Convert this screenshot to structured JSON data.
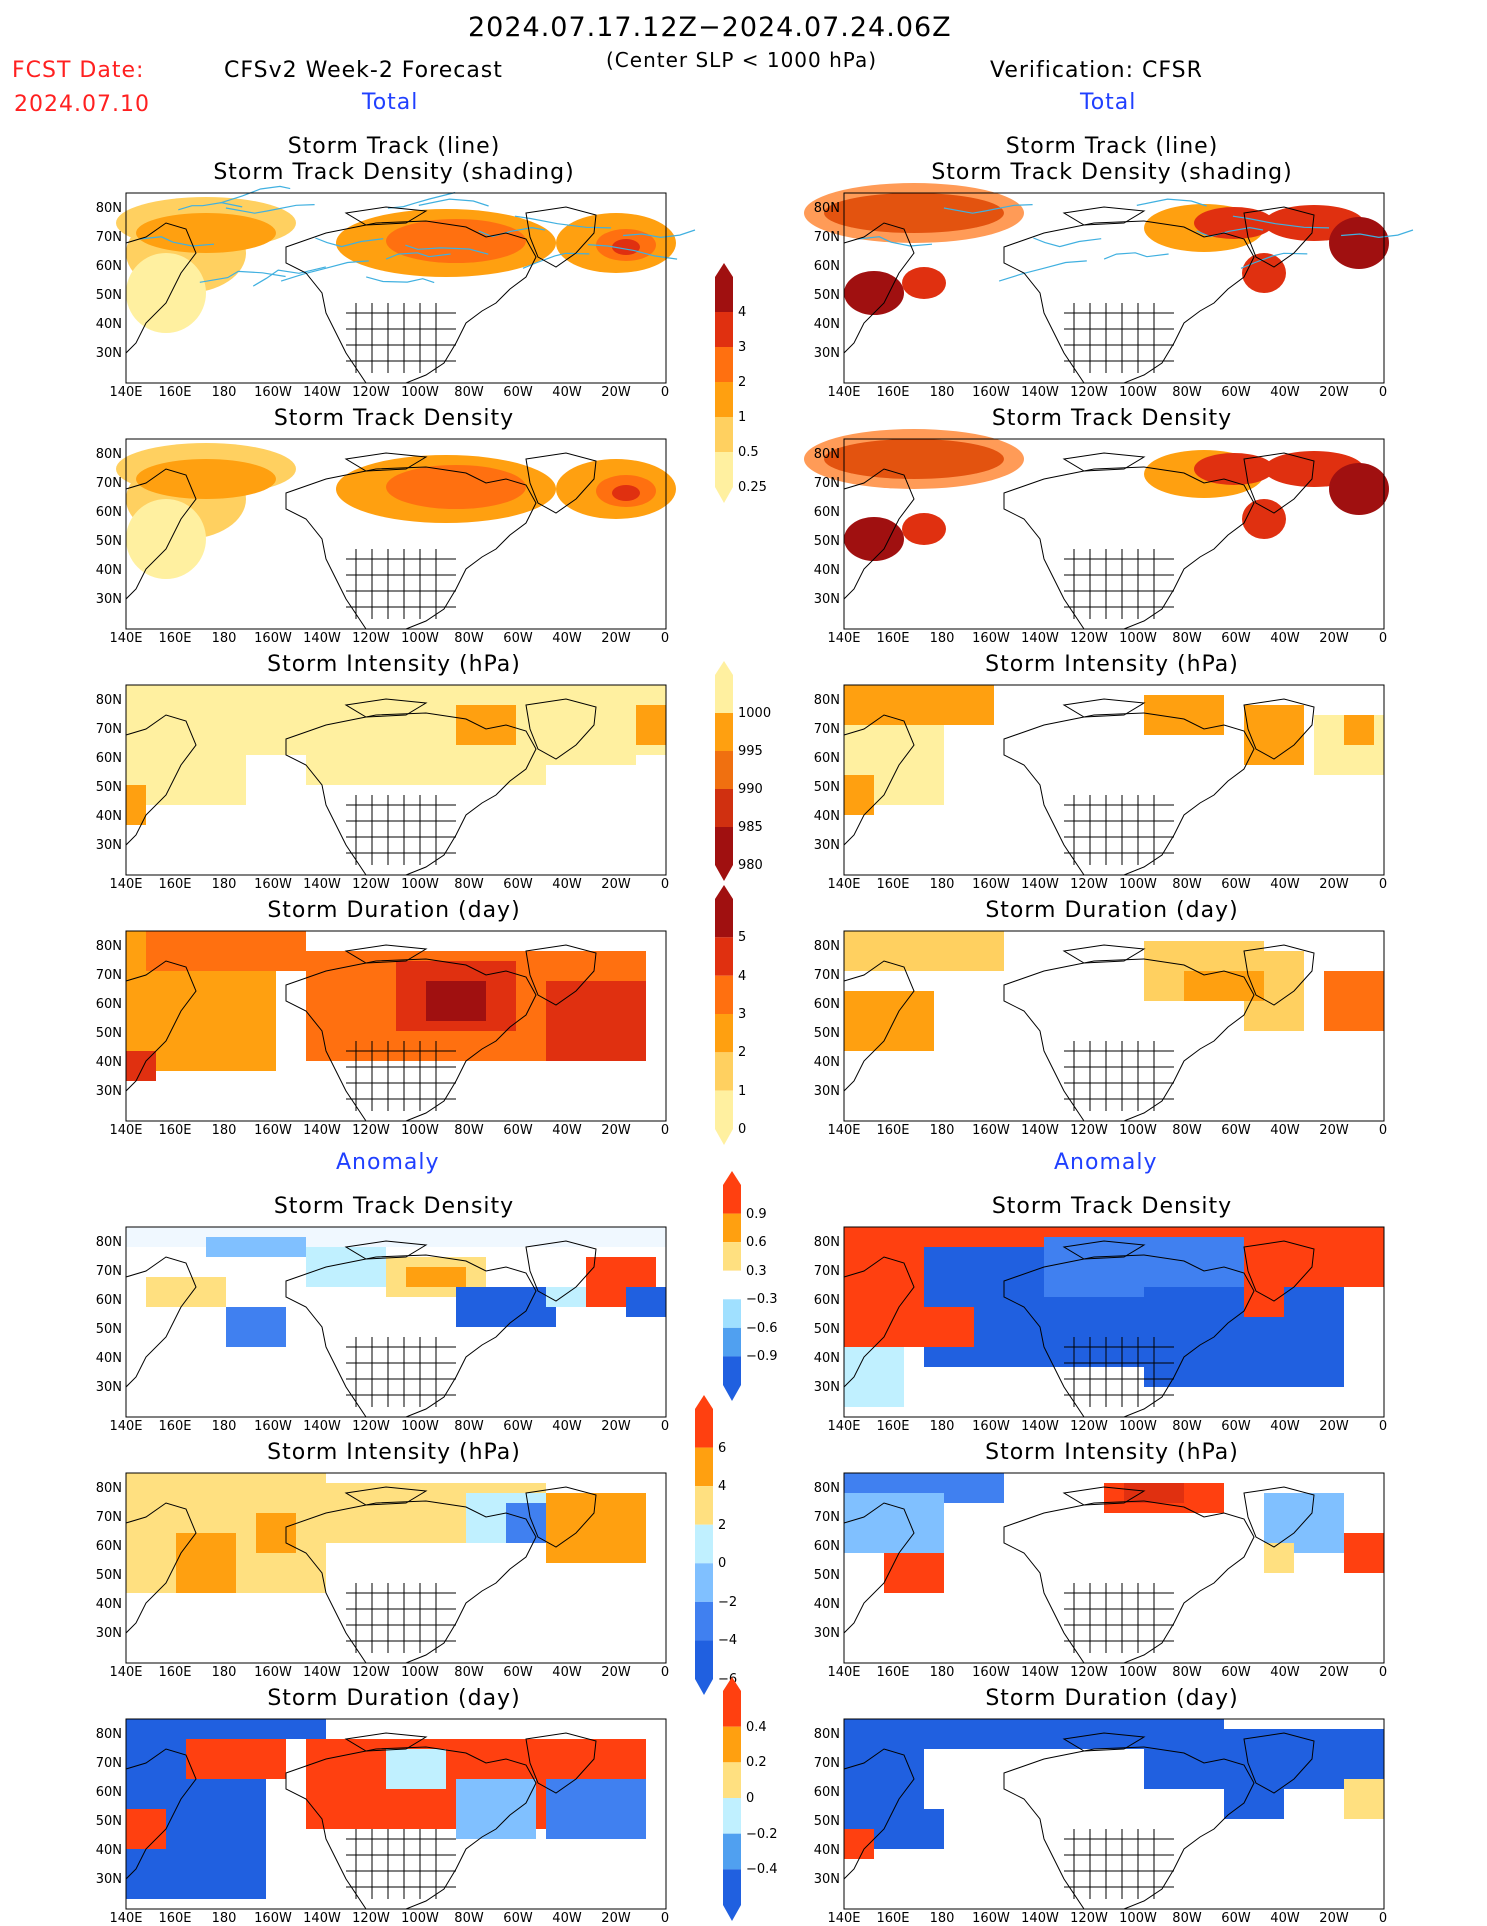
{
  "header": {
    "date_range": "2024.07.17.12Z−2024.07.24.06Z",
    "criterion": "(Center SLP < 1000 hPa)",
    "fcst_label": "FCST Date:",
    "fcst_date": "2024.07.10",
    "left_title": "CFSv2 Week-2 Forecast",
    "right_title": "Verification: CFSR",
    "total_label": "Total",
    "anomaly_label": "Anomaly"
  },
  "panel_titles": {
    "track_line": "Storm Track (line)",
    "track_shading": "Storm Track Density (shading)",
    "density": "Storm Track Density",
    "intensity": "Storm Intensity (hPa)",
    "duration": "Storm Duration (day)"
  },
  "axes": {
    "lat_labels": [
      "80N",
      "70N",
      "60N",
      "50N",
      "40N",
      "30N"
    ],
    "lon_labels": [
      "140E",
      "160E",
      "180",
      "160W",
      "140W",
      "120W",
      "100W",
      "80W",
      "60W",
      "40W",
      "20W",
      "0"
    ]
  },
  "colorbars": {
    "density_total": {
      "labels": [
        "4",
        "3",
        "2",
        "1",
        "0.5",
        "0.25"
      ],
      "colors": [
        "#a01010",
        "#e03010",
        "#ff7010",
        "#ffa010",
        "#ffd060",
        "#fff0a0"
      ]
    },
    "intensity_total": {
      "labels": [
        "1000",
        "995",
        "990",
        "985",
        "980"
      ],
      "colors": [
        "#fff0a0",
        "#ffa010",
        "#f07010",
        "#d03010",
        "#a01010"
      ]
    },
    "duration_total": {
      "labels": [
        "5",
        "4",
        "3",
        "2",
        "1",
        "0"
      ],
      "colors": [
        "#a01010",
        "#e03010",
        "#ff7010",
        "#ffa010",
        "#ffd060",
        "#fff0a0"
      ]
    },
    "density_anom": {
      "labels": [
        "0.9",
        "0.6",
        "0.3",
        "−0.3",
        "−0.6",
        "−0.9"
      ],
      "colors": [
        "#ff4010",
        "#ffa010",
        "#ffe080",
        "#ffffff",
        "#a0e0ff",
        "#50a0f0",
        "#2060e0"
      ]
    },
    "intensity_anom": {
      "labels": [
        "6",
        "4",
        "2",
        "0",
        "−2",
        "−4",
        "−6"
      ],
      "colors": [
        "#ff4010",
        "#ffa010",
        "#ffe080",
        "#c0f0ff",
        "#80c0ff",
        "#4080f0",
        "#2060e0"
      ]
    },
    "duration_anom": {
      "labels": [
        "0.4",
        "0.2",
        "0",
        "−0.2",
        "−0.4"
      ],
      "colors": [
        "#ff4010",
        "#ffa010",
        "#ffe080",
        "#c0f0ff",
        "#50a0f0",
        "#2060e0"
      ]
    }
  },
  "colors": {
    "track_line": "#40b0e0",
    "coast": "#000000"
  }
}
